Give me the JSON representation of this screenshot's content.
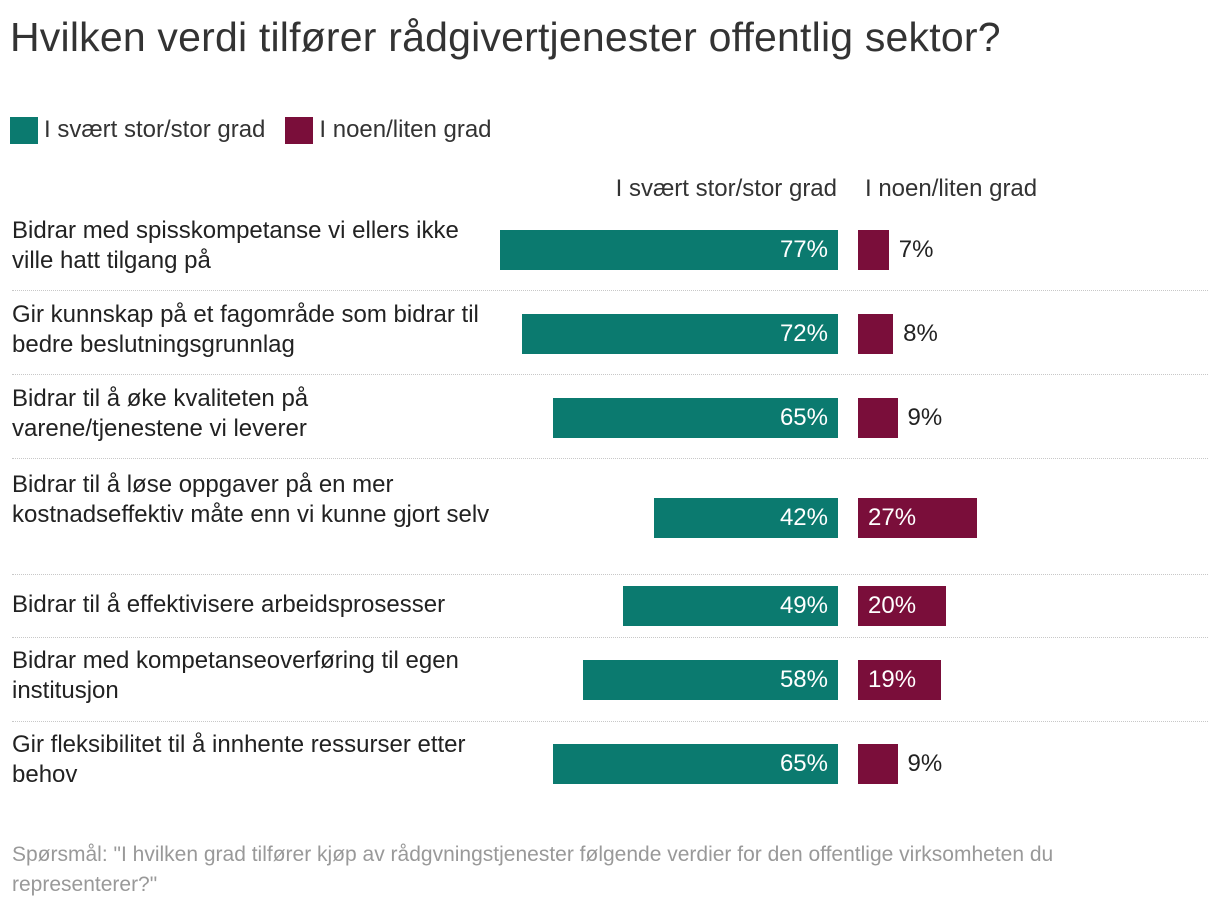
{
  "chart_data": {
    "type": "bar",
    "orientation": "horizontal-diverging",
    "title": "Hvilken verdi tilfører rådgivertjenester offentlig sektor?",
    "legend": [
      {
        "name": "I svært stor/stor grad",
        "color": "#0b7a6f"
      },
      {
        "name": "I noen/liten grad",
        "color": "#7a0e3a"
      }
    ],
    "column_headers": {
      "left": "I svært stor/stor grad",
      "right": "I noen/liten grad"
    },
    "categories": [
      "Bidrar med spisskompetanse vi ellers ikke ville hatt tilgang på",
      "Gir kunnskap på et fagområde som bidrar til bedre beslutningsgrunnlag",
      "Bidrar til å øke kvaliteten på varene/tjenestene vi leverer",
      "Bidrar til å løse oppgaver på en mer kostnadseffektiv måte enn vi kunne gjort selv",
      "Bidrar til å effektivisere arbeidsprosesser",
      "Bidrar med kompetanseoverføring til egen institusjon",
      "Gir fleksibilitet til å innhente ressurser etter behov"
    ],
    "series": [
      {
        "name": "I svært stor/stor grad",
        "values": [
          77,
          72,
          65,
          42,
          49,
          58,
          65
        ],
        "labels": [
          "77%",
          "72%",
          "65%",
          "42%",
          "49%",
          "58%",
          "65%"
        ]
      },
      {
        "name": "I noen/liten grad",
        "values": [
          7,
          8,
          9,
          27,
          20,
          19,
          9
        ],
        "labels": [
          "7%",
          "8%",
          "9%",
          "27%",
          "20%",
          "19%",
          "9%"
        ]
      }
    ],
    "unit": "%"
  },
  "note": "Spørsmål: \"I hvilken grad tilfører kjøp av rådgvningstjenester følgende verdier for den offentlige virksomheten du representerer?\""
}
